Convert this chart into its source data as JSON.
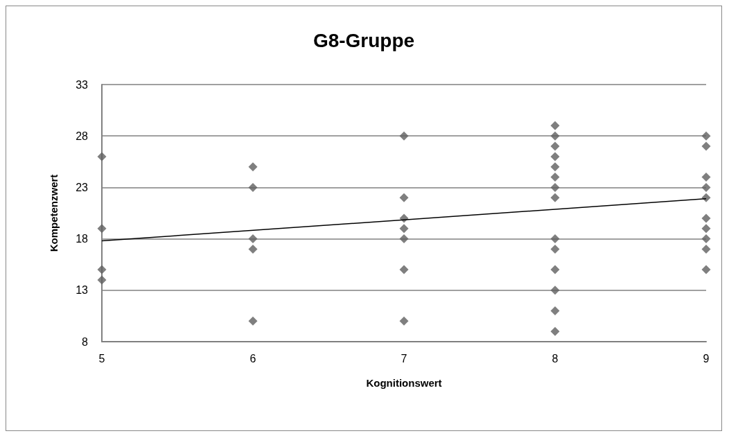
{
  "chart_data": {
    "type": "scatter",
    "title": "G8-Gruppe",
    "xlabel": "Kognitionswert",
    "ylabel": "Kompetenzwert",
    "xlim": [
      5,
      9
    ],
    "xticks": [
      5,
      6,
      7,
      8,
      9
    ],
    "ylim": [
      8,
      33
    ],
    "yticks": [
      8,
      13,
      18,
      23,
      28,
      33
    ],
    "grid": "y",
    "series": [
      {
        "color": "#5f5f5f",
        "marker": "diamond",
        "x": [
          5,
          5,
          5,
          5,
          6,
          6,
          6,
          6,
          6,
          7,
          7,
          7,
          7,
          7,
          7,
          7,
          8,
          8,
          8,
          8,
          8,
          8,
          8,
          8,
          8,
          8,
          8,
          8,
          8,
          8,
          9,
          9,
          9,
          9,
          9,
          9,
          9,
          9,
          9,
          9
        ],
        "values": [
          26,
          19,
          15,
          14,
          25,
          23,
          18,
          17,
          10,
          28,
          22,
          20,
          19,
          18,
          15,
          10,
          29,
          28,
          27,
          26,
          25,
          24,
          23,
          22,
          18,
          17,
          15,
          13,
          11,
          9,
          28,
          27,
          24,
          23,
          22,
          20,
          19,
          18,
          17,
          15
        ]
      },
      {
        "type": "line",
        "color": "#000000",
        "marker": "none",
        "x": [
          5,
          9
        ],
        "values": [
          17.8,
          21.9
        ]
      }
    ]
  }
}
